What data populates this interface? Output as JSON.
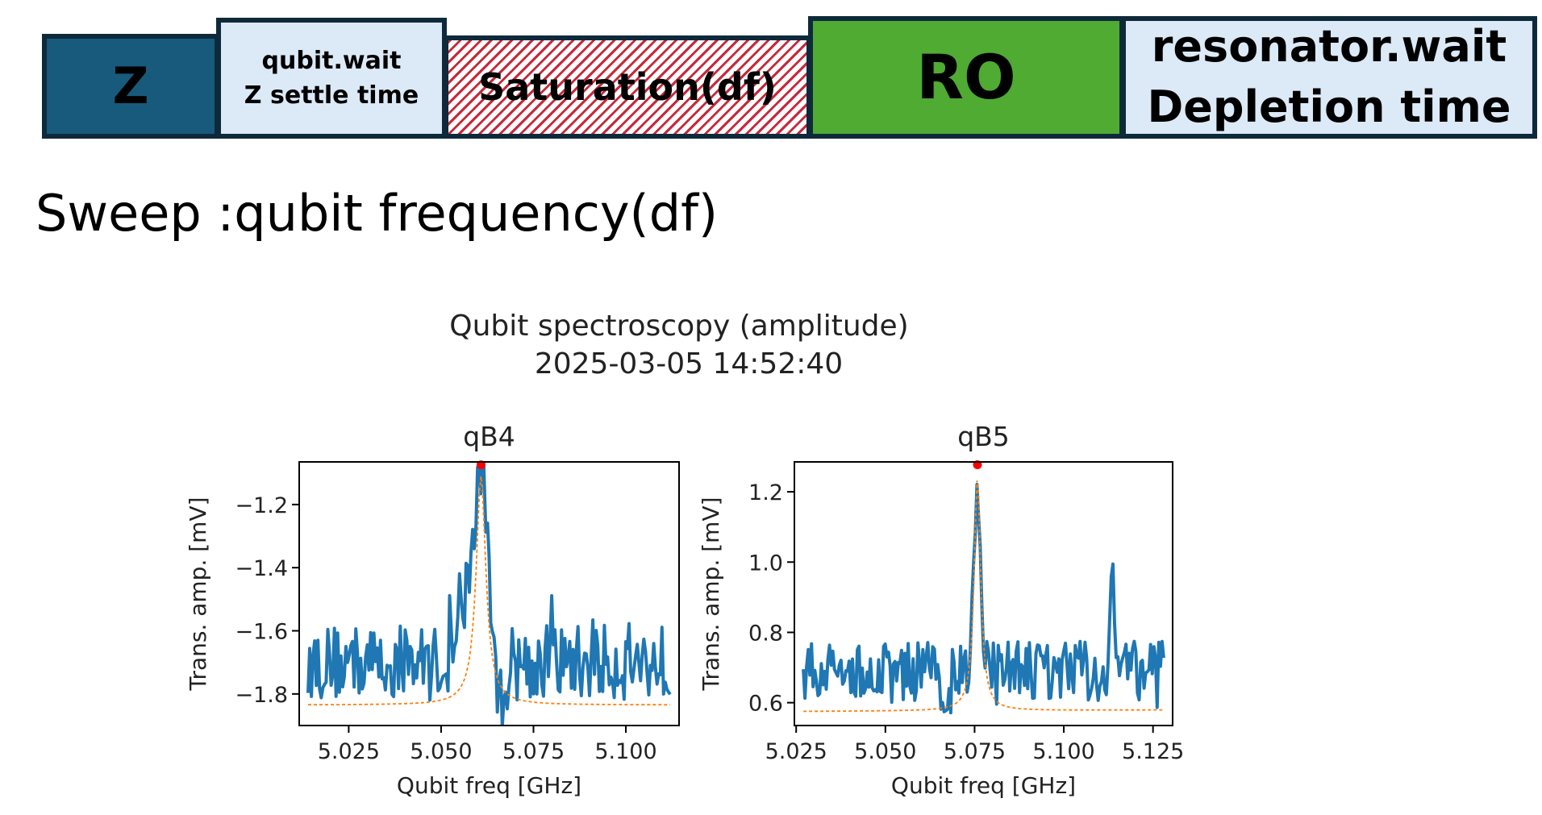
{
  "sequence": {
    "blocks": [
      {
        "label": "Z",
        "color": "#175a7c"
      },
      {
        "line1": "qubit.wait",
        "line2": "Z settle time",
        "color": "#dce9f6"
      },
      {
        "label": "Saturation(df)",
        "color": "#c8283a"
      },
      {
        "label": "RO",
        "color": "#4fab32"
      },
      {
        "line1": "resonator.wait",
        "line2": "Depletion time",
        "color": "#dce9f6"
      }
    ]
  },
  "sweep_label": "Sweep :qubit frequency(df)",
  "figure": {
    "title": "Qubit spectroscopy (amplitude)",
    "timestamp": "2025-03-05 14:52:40"
  },
  "chart_data": [
    {
      "type": "line",
      "title": "qB4",
      "xlabel": "Qubit freq [GHz]",
      "ylabel": "Trans. amp. [mV]",
      "xlim": [
        5.0116,
        5.1144
      ],
      "ylim": [
        -1.9,
        -1.065
      ],
      "xticks": [
        5.025,
        5.05,
        5.075,
        5.1
      ],
      "xtick_labels": [
        "5.025",
        "5.050",
        "5.075",
        "5.100"
      ],
      "yticks": [
        -1.8,
        -1.6,
        -1.4,
        -1.2
      ],
      "ytick_labels": [
        "−1.8",
        "−1.6",
        "−1.4",
        "−1.2"
      ],
      "data_x_range": [
        5.014,
        5.112
      ],
      "peak": {
        "x": 5.0608,
        "y": -1.11
      },
      "shoulder": {
        "x": 5.057,
        "y": -1.48
      },
      "baseline": -1.7,
      "fit": {
        "center": 5.0608,
        "gamma": 0.0016,
        "offset": -1.835,
        "amplitude": 0.725
      },
      "series": [
        {
          "color": "#1f77b4"
        },
        {
          "color": "#ff7f0e"
        },
        {
          "color": "#ff0000"
        }
      ]
    },
    {
      "type": "line",
      "title": "qB5",
      "xlabel": "Qubit freq [GHz]",
      "ylabel": "Trans. amp. [mV]",
      "xlim": [
        5.0245,
        5.1305
      ],
      "ylim": [
        0.535,
        1.285
      ],
      "xticks": [
        5.025,
        5.05,
        5.075,
        5.1,
        5.125
      ],
      "xtick_labels": [
        "5.025",
        "5.050",
        "5.075",
        "5.100",
        "5.125"
      ],
      "yticks": [
        0.6,
        0.8,
        1.0,
        1.2
      ],
      "ytick_labels": [
        "0.6",
        "0.8",
        "1.0",
        "1.2"
      ],
      "data_x_range": [
        5.027,
        5.128
      ],
      "peak": {
        "x": 5.0758,
        "y": 1.245
      },
      "secondary_peak": {
        "x": 5.1135,
        "y": 0.96
      },
      "baseline": 0.69,
      "fit": {
        "center": 5.0758,
        "gamma": 0.0011,
        "offset": 0.575,
        "slope": 0.35,
        "amplitude": 0.665
      },
      "series": [
        {
          "color": "#1f77b4"
        },
        {
          "color": "#ff7f0e"
        },
        {
          "color": "#ff0000"
        }
      ]
    }
  ]
}
